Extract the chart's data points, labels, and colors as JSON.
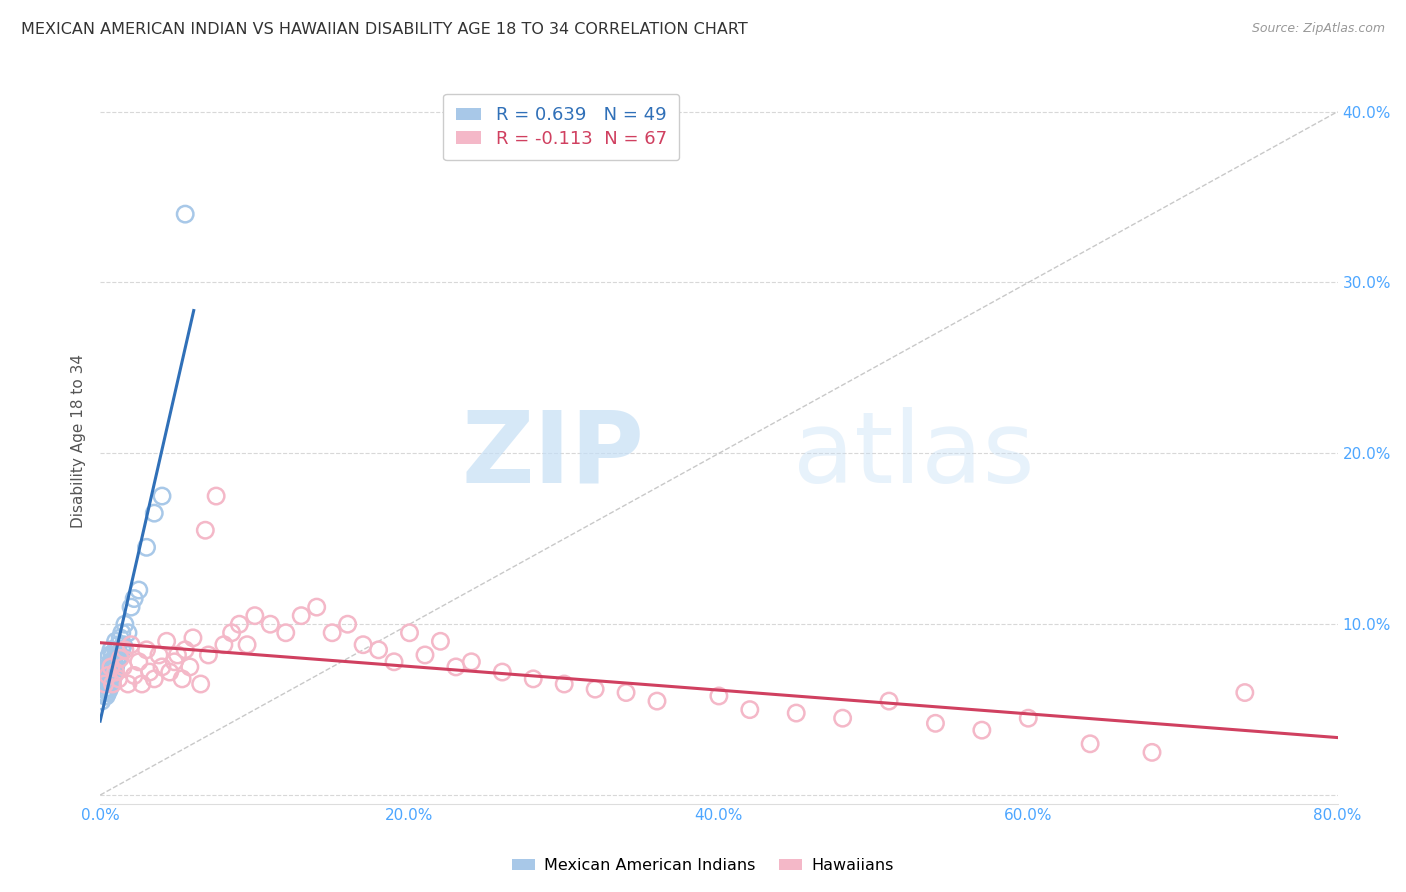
{
  "title": "MEXICAN AMERICAN INDIAN VS HAWAIIAN DISABILITY AGE 18 TO 34 CORRELATION CHART",
  "source": "Source: ZipAtlas.com",
  "ylabel": "Disability Age 18 to 34",
  "xlim": [
    0.0,
    0.8
  ],
  "ylim": [
    -0.005,
    0.42
  ],
  "xticks": [
    0.0,
    0.2,
    0.4,
    0.6,
    0.8
  ],
  "xticklabels": [
    "0.0%",
    "20.0%",
    "40.0%",
    "60.0%",
    "80.0%"
  ],
  "yticks": [
    0.0,
    0.1,
    0.2,
    0.3,
    0.4
  ],
  "yticklabels": [
    "",
    "10.0%",
    "20.0%",
    "30.0%",
    "40.0%"
  ],
  "blue_color": "#a8c8e8",
  "pink_color": "#f4b8c8",
  "blue_line_color": "#3070b8",
  "pink_line_color": "#d04060",
  "r_blue": 0.639,
  "n_blue": 49,
  "r_pink": -0.113,
  "n_pink": 67,
  "legend_label_blue": "Mexican American Indians",
  "legend_label_pink": "Hawaiians",
  "watermark_zip": "ZIP",
  "watermark_atlas": "atlas",
  "tick_color": "#4da6ff",
  "grid_color": "#d8d8d8",
  "bg_color": "#ffffff",
  "blue_scatter_x": [
    0.001,
    0.002,
    0.002,
    0.003,
    0.003,
    0.003,
    0.004,
    0.004,
    0.004,
    0.004,
    0.005,
    0.005,
    0.005,
    0.005,
    0.005,
    0.006,
    0.006,
    0.006,
    0.006,
    0.007,
    0.007,
    0.007,
    0.007,
    0.008,
    0.008,
    0.008,
    0.009,
    0.009,
    0.01,
    0.01,
    0.01,
    0.011,
    0.011,
    0.012,
    0.012,
    0.013,
    0.013,
    0.014,
    0.014,
    0.015,
    0.016,
    0.018,
    0.02,
    0.022,
    0.025,
    0.03,
    0.035,
    0.04,
    0.055
  ],
  "blue_scatter_y": [
    0.055,
    0.06,
    0.065,
    0.058,
    0.062,
    0.07,
    0.058,
    0.062,
    0.068,
    0.072,
    0.06,
    0.065,
    0.07,
    0.075,
    0.08,
    0.062,
    0.068,
    0.075,
    0.082,
    0.065,
    0.072,
    0.078,
    0.085,
    0.068,
    0.075,
    0.082,
    0.07,
    0.078,
    0.075,
    0.082,
    0.09,
    0.078,
    0.085,
    0.08,
    0.088,
    0.082,
    0.092,
    0.085,
    0.095,
    0.088,
    0.1,
    0.095,
    0.11,
    0.115,
    0.12,
    0.145,
    0.165,
    0.175,
    0.34
  ],
  "pink_scatter_x": [
    0.003,
    0.005,
    0.007,
    0.008,
    0.01,
    0.012,
    0.013,
    0.015,
    0.016,
    0.018,
    0.02,
    0.022,
    0.025,
    0.027,
    0.03,
    0.032,
    0.035,
    0.038,
    0.04,
    0.043,
    0.045,
    0.048,
    0.05,
    0.053,
    0.055,
    0.058,
    0.06,
    0.065,
    0.068,
    0.07,
    0.075,
    0.08,
    0.085,
    0.09,
    0.095,
    0.1,
    0.11,
    0.12,
    0.13,
    0.14,
    0.15,
    0.16,
    0.17,
    0.18,
    0.19,
    0.2,
    0.21,
    0.22,
    0.23,
    0.24,
    0.26,
    0.28,
    0.3,
    0.32,
    0.34,
    0.36,
    0.4,
    0.42,
    0.45,
    0.48,
    0.51,
    0.54,
    0.57,
    0.6,
    0.64,
    0.68,
    0.74
  ],
  "pink_scatter_y": [
    0.065,
    0.07,
    0.075,
    0.065,
    0.072,
    0.068,
    0.08,
    0.075,
    0.085,
    0.065,
    0.088,
    0.07,
    0.078,
    0.065,
    0.085,
    0.072,
    0.068,
    0.082,
    0.075,
    0.09,
    0.072,
    0.078,
    0.082,
    0.068,
    0.085,
    0.075,
    0.092,
    0.065,
    0.155,
    0.082,
    0.175,
    0.088,
    0.095,
    0.1,
    0.088,
    0.105,
    0.1,
    0.095,
    0.105,
    0.11,
    0.095,
    0.1,
    0.088,
    0.085,
    0.078,
    0.095,
    0.082,
    0.09,
    0.075,
    0.078,
    0.072,
    0.068,
    0.065,
    0.062,
    0.06,
    0.055,
    0.058,
    0.05,
    0.048,
    0.045,
    0.055,
    0.042,
    0.038,
    0.045,
    0.03,
    0.025,
    0.06
  ]
}
